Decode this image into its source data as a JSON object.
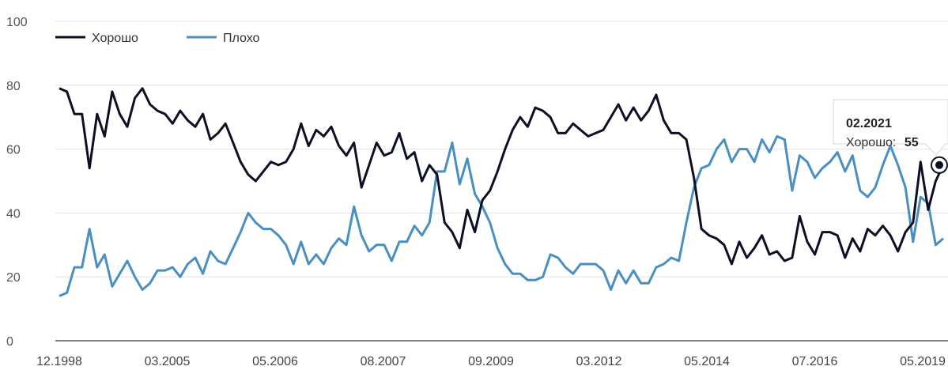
{
  "chart_data": {
    "type": "line",
    "title": "",
    "xlabel": "",
    "ylabel": "",
    "ylim": [
      0,
      100
    ],
    "yticks": [
      0,
      20,
      40,
      60,
      80,
      100
    ],
    "xtick_labels": [
      "12.1998",
      "03.2005",
      "05.2006",
      "08.2007",
      "09.2009",
      "03.2012",
      "05.2014",
      "07.2016",
      "05.2019"
    ],
    "grid": "horizontal",
    "legend_position": "top-left",
    "series": [
      {
        "name": "Хорошо",
        "color": "#0d0f24",
        "values": [
          79,
          78,
          71,
          71,
          54,
          71,
          64,
          78,
          71,
          67,
          76,
          79,
          74,
          72,
          71,
          68,
          72,
          69,
          67,
          71,
          63,
          65,
          68,
          62,
          56,
          52,
          50,
          53,
          56,
          55,
          56,
          60,
          68,
          61,
          66,
          64,
          67,
          61,
          58,
          62,
          48,
          55,
          62,
          58,
          59,
          65,
          57,
          59,
          50,
          55,
          52,
          37,
          34,
          29,
          41,
          34,
          44,
          47,
          53,
          60,
          66,
          70,
          67,
          73,
          72,
          70,
          65,
          65,
          68,
          66,
          64,
          65,
          66,
          70,
          74,
          69,
          73,
          69,
          72,
          77,
          69,
          65,
          65,
          63,
          51,
          35,
          33,
          32,
          30,
          24,
          31,
          26,
          29,
          33,
          27,
          28,
          25,
          26,
          39,
          31,
          27,
          34,
          34,
          33,
          26,
          32,
          28,
          35,
          33,
          36,
          33,
          28,
          34,
          37,
          56,
          41,
          50,
          55
        ]
      },
      {
        "name": "Плохо",
        "color": "#4a8fc1",
        "values": [
          14,
          15,
          23,
          23,
          35,
          23,
          27,
          17,
          21,
          25,
          20,
          16,
          18,
          22,
          22,
          23,
          20,
          24,
          26,
          21,
          28,
          25,
          24,
          29,
          34,
          40,
          37,
          35,
          35,
          33,
          30,
          24,
          31,
          24,
          27,
          24,
          29,
          32,
          30,
          42,
          33,
          28,
          30,
          30,
          25,
          31,
          31,
          36,
          33,
          37,
          53,
          53,
          62,
          49,
          57,
          46,
          42,
          37,
          29,
          24,
          21,
          21,
          19,
          19,
          20,
          27,
          26,
          23,
          21,
          24,
          24,
          24,
          22,
          16,
          22,
          18,
          22,
          18,
          18,
          23,
          24,
          26,
          25,
          37,
          48,
          54,
          55,
          60,
          63,
          56,
          60,
          60,
          56,
          63,
          59,
          64,
          63,
          47,
          58,
          56,
          51,
          54,
          56,
          59,
          53,
          58,
          47,
          45,
          48,
          55,
          61,
          55,
          48,
          31,
          45,
          43,
          30,
          32
        ]
      }
    ],
    "tooltip": {
      "date": "02.2021",
      "series_label": "Хорошо:",
      "value": "55"
    }
  }
}
